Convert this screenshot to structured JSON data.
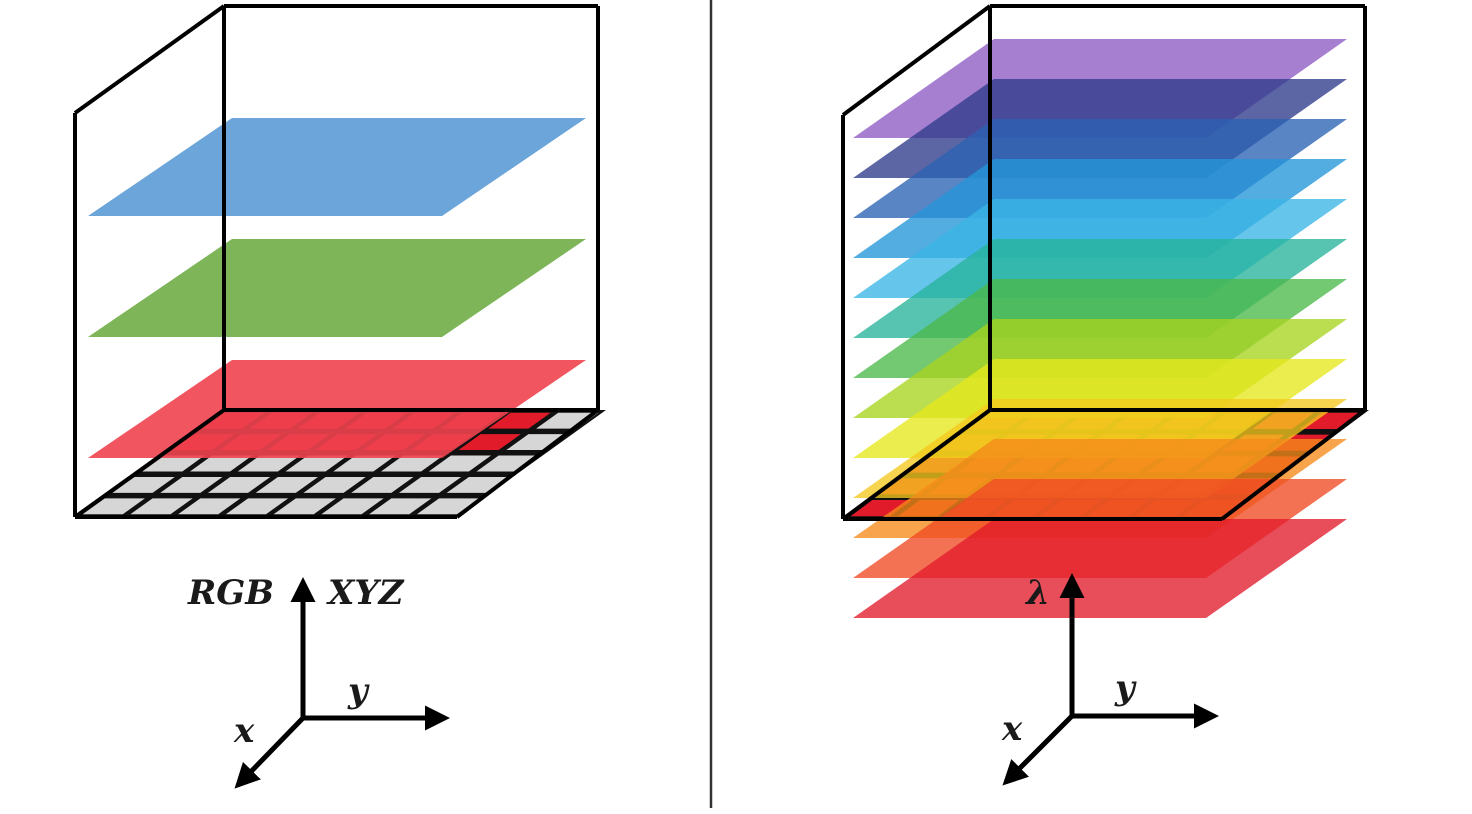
{
  "left_panel": {
    "layer_colors": [
      "#5b9bd5",
      "#70ad47",
      "#f0424f"
    ],
    "grid_cell_color": "#d6d6d6",
    "grid_highlight_color": "#e21b2b",
    "axis_labels": {
      "vertical_left": "RGB",
      "vertical_right": "XYZ",
      "y": "y",
      "x": "x"
    }
  },
  "right_panel": {
    "layer_colors": [
      "#8e5bc4",
      "#2f3b8a",
      "#2c63b3",
      "#2496d8",
      "#3bb5e6",
      "#27b39a",
      "#4cb84a",
      "#a8d31f",
      "#e5e81c",
      "#f5c81e",
      "#f58a1a",
      "#ef4a24",
      "#e21b2b"
    ],
    "grid_cell_color": "#d6d6d6",
    "axis_labels": {
      "vertical": "λ",
      "y": "y",
      "x": "x"
    }
  },
  "divider_color": "#333333"
}
